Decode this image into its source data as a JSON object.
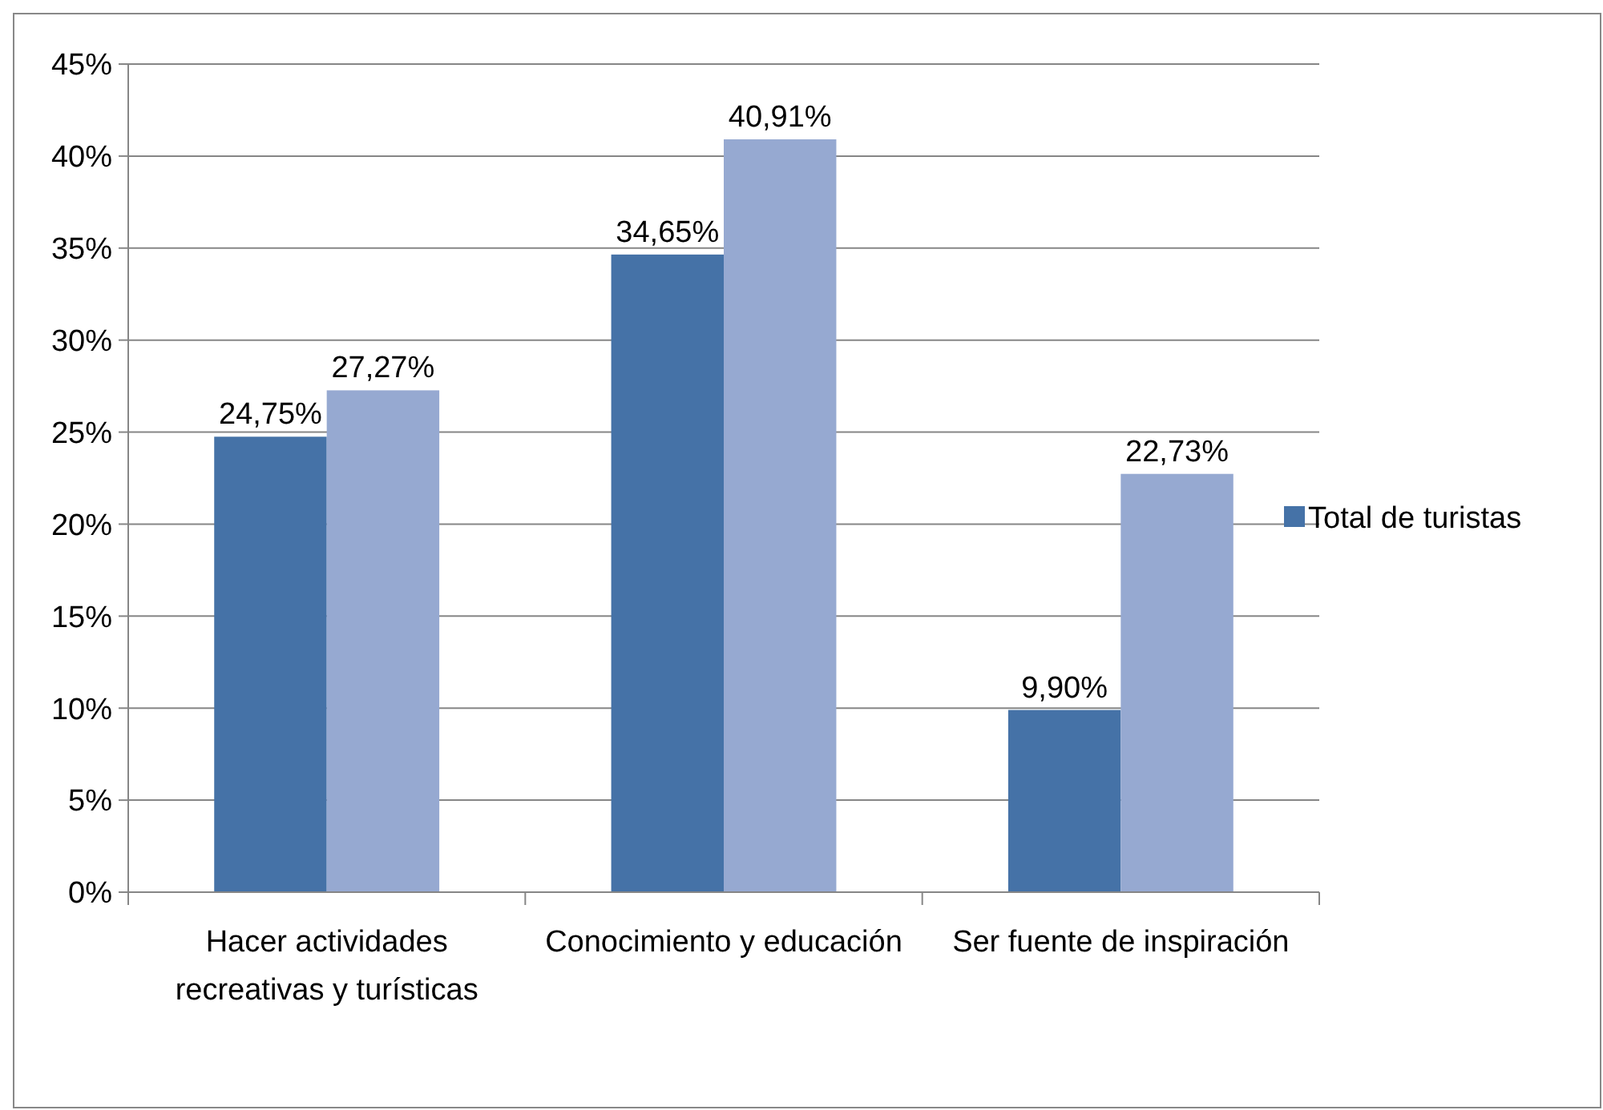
{
  "chart_data": {
    "type": "bar",
    "categories": [
      "Hacer actividades recreativas y turísticas",
      "Conocimiento y educación",
      "Ser fuente de inspiración"
    ],
    "series": [
      {
        "name": "Total de turistas",
        "color": "#4572a7",
        "values": [
          24.75,
          34.65,
          9.9
        ],
        "value_labels": [
          "24,75%",
          "34,65%",
          "9,90%"
        ]
      },
      {
        "color": "#96a9d1",
        "values": [
          27.27,
          40.91,
          22.73
        ],
        "value_labels": [
          "27,27%",
          "40,91%",
          "22,73%"
        ]
      }
    ],
    "ylim": [
      0,
      45
    ],
    "yticks": [
      {
        "value": 0,
        "label": "0%"
      },
      {
        "value": 5,
        "label": "5%"
      },
      {
        "value": 10,
        "label": "10%"
      },
      {
        "value": 15,
        "label": "15%"
      },
      {
        "value": 20,
        "label": "20%"
      },
      {
        "value": 25,
        "label": "25%"
      },
      {
        "value": 30,
        "label": "30%"
      },
      {
        "value": 35,
        "label": "35%"
      },
      {
        "value": 40,
        "label": "40%"
      },
      {
        "value": 45,
        "label": "45%"
      }
    ],
    "grid": "y",
    "legend": "right"
  }
}
